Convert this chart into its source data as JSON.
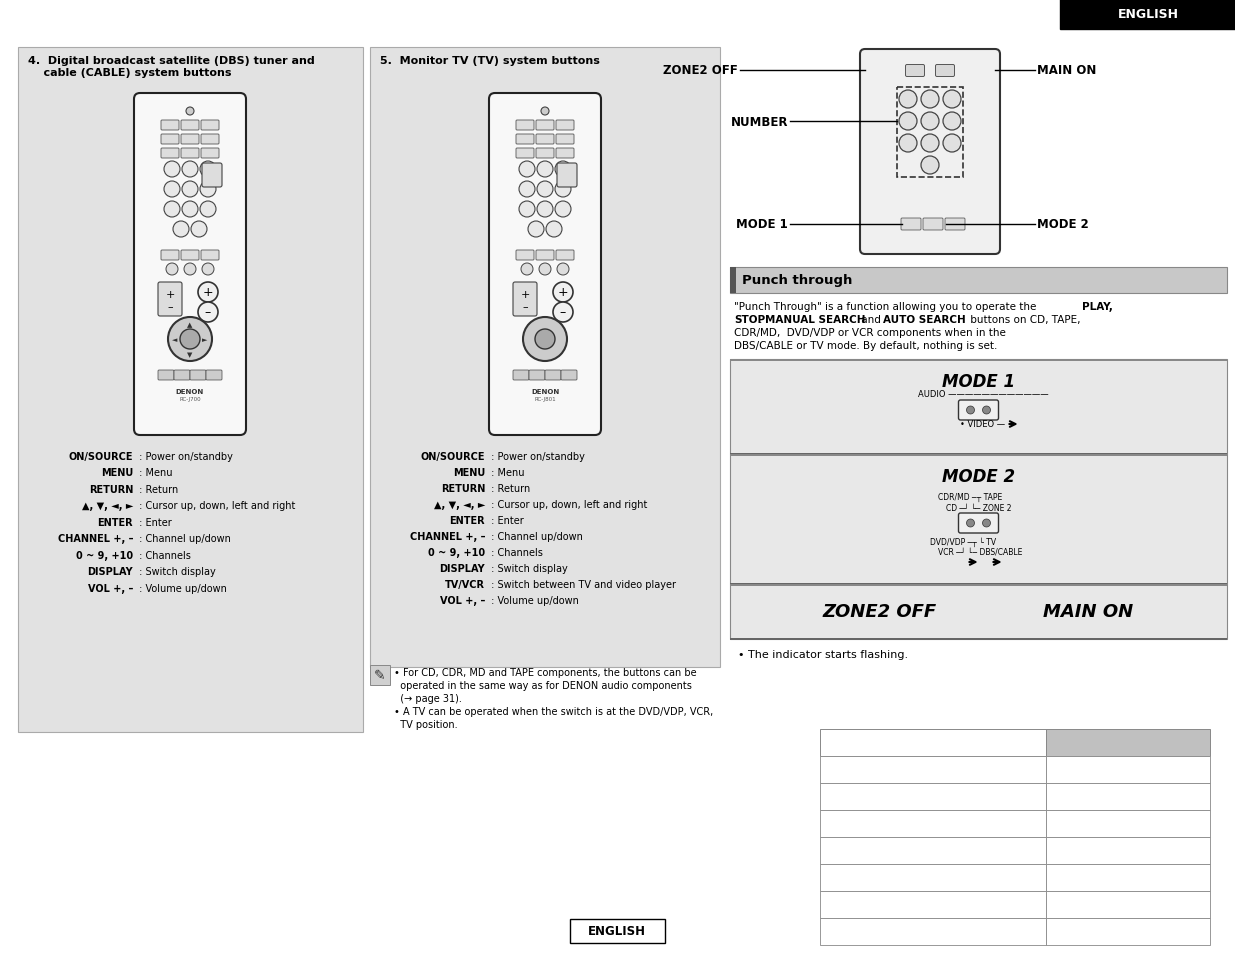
{
  "page_bg": "#ffffff",
  "header_bg": "#000000",
  "header_text": "ENGLISH",
  "header_text_color": "#ffffff",
  "section_bg": "#e0e0e0",
  "section4_title_line1": "4.  Digital broadcast satellite (DBS) tuner and",
  "section4_title_line2": "    cable (CABLE) system buttons",
  "section5_title": "5.  Monitor TV (TV) system buttons",
  "section4_labels": [
    [
      "ON/SOURCE",
      " : Power on/standby"
    ],
    [
      "MENU",
      " : Menu"
    ],
    [
      "RETURN",
      " : Return"
    ],
    [
      "▲, ▼, ◄, ►",
      " : Cursor up, down, left and right"
    ],
    [
      "ENTER",
      " : Enter"
    ],
    [
      "CHANNEL +, –",
      " : Channel up/down"
    ],
    [
      "0 ~ 9, +10",
      " : Channels"
    ],
    [
      "DISPLAY",
      " : Switch display"
    ],
    [
      "VOL +, –",
      " : Volume up/down"
    ]
  ],
  "section5_labels": [
    [
      "ON/SOURCE",
      " : Power on/standby"
    ],
    [
      "MENU",
      " : Menu"
    ],
    [
      "RETURN",
      " : Return"
    ],
    [
      "▲, ▼, ◄, ►",
      " : Cursor up, down, left and right"
    ],
    [
      "ENTER",
      " : Enter"
    ],
    [
      "CHANNEL +, –",
      " : Channel up/down"
    ],
    [
      "0 ~ 9, +10",
      " : Channels"
    ],
    [
      "DISPLAY",
      " : Switch display"
    ],
    [
      "TV/VCR",
      " : Switch between TV and video player"
    ],
    [
      "VOL +, –",
      " : Volume up/down"
    ]
  ],
  "punch_header": "Punch through",
  "mode1_label": "MODE 1",
  "mode2_label": "MODE 2",
  "zone2off_label": "ZONE2 OFF",
  "mainon_label": "MAIN ON",
  "indicator_text": "• The indicator starts flashing.",
  "footer_text": "ENGLISH",
  "note_line1": "• For CD, CDR, MD and TAPE components, the buttons can be",
  "note_line2": "  operated in the same way as for DENON audio components",
  "note_line3": "  (→ page 31).",
  "note_line4": "• A TV can be operated when the switch is at the DVD/VDP, VCR,",
  "note_line5": "  TV position."
}
